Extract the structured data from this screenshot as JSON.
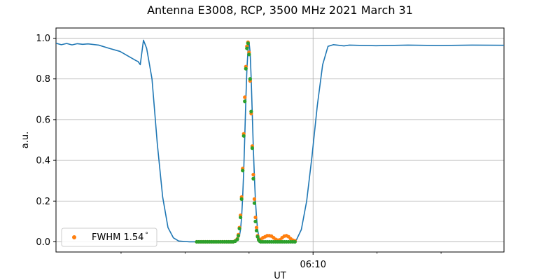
{
  "chart_data": {
    "type": "line",
    "title": "Antenna E3008, RCP, 3500 MHz 2021 March 31",
    "xlabel": "UT",
    "ylabel": "a.u.",
    "xlim": [
      "06:05:59",
      "06:12:59"
    ],
    "ylim": [
      -0.05,
      1.05
    ],
    "yticks": [
      0.0,
      0.2,
      0.4,
      0.6,
      0.8,
      1.0
    ],
    "ytick_labels": [
      "0.0",
      "0.2",
      "0.4",
      "0.6",
      "0.8",
      "1.0"
    ],
    "xtick_labels": [
      "06:10"
    ],
    "xticks_ut": [
      "06:10:00"
    ],
    "minor_xticks_ut": [
      "06:07:00",
      "06:08:00",
      "06:09:00",
      "06:11:00",
      "06:12:00"
    ],
    "grid": true,
    "legend_position": "lower left",
    "series": [
      {
        "name": "",
        "style": "line",
        "color": "#1f77b4",
        "x": [
          "06:05:59",
          "06:06:04",
          "06:06:09",
          "06:06:14",
          "06:06:19",
          "06:06:24",
          "06:06:29",
          "06:06:39",
          "06:06:49",
          "06:06:59",
          "06:07:09",
          "06:07:14",
          "06:07:16",
          "06:07:18",
          "06:07:21",
          "06:07:24",
          "06:07:29",
          "06:07:34",
          "06:07:39",
          "06:07:44",
          "06:07:49",
          "06:07:54",
          "06:07:59",
          "06:08:04",
          "06:08:14",
          "06:08:24",
          "06:08:34",
          "06:08:44",
          "06:08:49",
          "06:08:51",
          "06:08:52",
          "06:08:53",
          "06:08:54",
          "06:08:55",
          "06:08:56",
          "06:08:57",
          "06:08:58",
          "06:08:59",
          "06:09:00",
          "06:09:01",
          "06:09:02",
          "06:09:03",
          "06:09:04",
          "06:09:05",
          "06:09:06",
          "06:09:07",
          "06:09:08",
          "06:09:09",
          "06:09:10",
          "06:09:11",
          "06:09:12",
          "06:09:14",
          "06:09:19",
          "06:09:29",
          "06:09:39",
          "06:09:44",
          "06:09:49",
          "06:09:54",
          "06:09:59",
          "06:10:04",
          "06:10:09",
          "06:10:14",
          "06:10:19",
          "06:10:24",
          "06:10:29",
          "06:10:34",
          "06:10:59",
          "06:11:29",
          "06:11:59",
          "06:12:29",
          "06:12:59"
        ],
        "y": [
          0.975,
          0.968,
          0.974,
          0.967,
          0.973,
          0.97,
          0.972,
          0.966,
          0.95,
          0.935,
          0.905,
          0.89,
          0.885,
          0.87,
          0.99,
          0.95,
          0.8,
          0.48,
          0.22,
          0.07,
          0.02,
          0.004,
          0.002,
          0.0,
          0.0,
          0.0,
          0.0,
          0.0,
          0.01,
          0.03,
          0.06,
          0.12,
          0.22,
          0.35,
          0.52,
          0.7,
          0.85,
          0.94,
          0.98,
          0.93,
          0.8,
          0.63,
          0.46,
          0.32,
          0.2,
          0.12,
          0.06,
          0.03,
          0.012,
          0.004,
          0.0,
          0.0,
          0.0,
          0.0,
          0.0,
          0.005,
          0.06,
          0.2,
          0.42,
          0.67,
          0.87,
          0.96,
          0.968,
          0.965,
          0.962,
          0.966,
          0.963,
          0.966,
          0.964,
          0.966,
          0.965
        ]
      },
      {
        "name": "FWHM 1.54$^\\circ$",
        "legend_label": "FWHM 1.54",
        "legend_degree": "°",
        "style": "scatter",
        "color": "#ff7f0e",
        "x": [
          "06:08:11",
          "06:08:13",
          "06:08:15",
          "06:08:17",
          "06:08:19",
          "06:08:21",
          "06:08:23",
          "06:08:25",
          "06:08:27",
          "06:08:29",
          "06:08:31",
          "06:08:33",
          "06:08:35",
          "06:08:37",
          "06:08:39",
          "06:08:41",
          "06:08:43",
          "06:08:45",
          "06:08:47",
          "06:08:49",
          "06:08:50",
          "06:08:51",
          "06:08:52",
          "06:08:53",
          "06:08:54",
          "06:08:55",
          "06:08:56",
          "06:08:57",
          "06:08:58",
          "06:08:59",
          "06:09:00",
          "06:09:01",
          "06:09:02",
          "06:09:03",
          "06:09:04",
          "06:09:05",
          "06:09:06",
          "06:09:07",
          "06:09:08",
          "06:09:09",
          "06:09:10",
          "06:09:11",
          "06:09:13",
          "06:09:15",
          "06:09:17",
          "06:09:19",
          "06:09:21",
          "06:09:23",
          "06:09:25",
          "06:09:27",
          "06:09:29",
          "06:09:31",
          "06:09:33",
          "06:09:35",
          "06:09:37",
          "06:09:39",
          "06:09:41",
          "06:09:43"
        ],
        "y": [
          0.0,
          0.0,
          0.0,
          0.0,
          0.0,
          0.0,
          0.0,
          0.0,
          0.0,
          0.0,
          0.0,
          0.0,
          0.0,
          0.0,
          0.0,
          0.0,
          0.0,
          0.0,
          0.005,
          0.015,
          0.035,
          0.07,
          0.13,
          0.22,
          0.36,
          0.53,
          0.71,
          0.86,
          0.96,
          0.98,
          0.93,
          0.79,
          0.63,
          0.47,
          0.33,
          0.21,
          0.12,
          0.07,
          0.03,
          0.015,
          0.005,
          0.012,
          0.02,
          0.025,
          0.03,
          0.03,
          0.028,
          0.02,
          0.012,
          0.008,
          0.01,
          0.02,
          0.028,
          0.03,
          0.025,
          0.015,
          0.008,
          0.005
        ]
      },
      {
        "name": "",
        "style": "scatter",
        "color": "#2ca02c",
        "x": [
          "06:08:11",
          "06:08:13",
          "06:08:15",
          "06:08:17",
          "06:08:19",
          "06:08:21",
          "06:08:23",
          "06:08:25",
          "06:08:27",
          "06:08:29",
          "06:08:31",
          "06:08:33",
          "06:08:35",
          "06:08:37",
          "06:08:39",
          "06:08:41",
          "06:08:43",
          "06:08:45",
          "06:08:47",
          "06:08:49",
          "06:08:50",
          "06:08:51",
          "06:08:52",
          "06:08:53",
          "06:08:54",
          "06:08:55",
          "06:08:56",
          "06:08:57",
          "06:08:58",
          "06:08:59",
          "06:09:00",
          "06:09:01",
          "06:09:02",
          "06:09:03",
          "06:09:04",
          "06:09:05",
          "06:09:06",
          "06:09:07",
          "06:09:08",
          "06:09:09",
          "06:09:10",
          "06:09:11",
          "06:09:13",
          "06:09:15",
          "06:09:17",
          "06:09:19",
          "06:09:21",
          "06:09:23",
          "06:09:25",
          "06:09:27",
          "06:09:29",
          "06:09:31",
          "06:09:33",
          "06:09:35",
          "06:09:37",
          "06:09:39",
          "06:09:41",
          "06:09:43"
        ],
        "y": [
          0.0,
          0.0,
          0.0,
          0.0,
          0.0,
          0.0,
          0.0,
          0.0,
          0.0,
          0.0,
          0.0,
          0.0,
          0.0,
          0.0,
          0.0,
          0.0,
          0.0,
          0.0,
          0.003,
          0.012,
          0.03,
          0.065,
          0.12,
          0.21,
          0.35,
          0.52,
          0.69,
          0.85,
          0.95,
          0.975,
          0.92,
          0.8,
          0.64,
          0.46,
          0.31,
          0.19,
          0.1,
          0.055,
          0.025,
          0.01,
          0.003,
          0.0,
          0.0,
          0.0,
          0.0,
          0.0,
          0.0,
          0.0,
          0.0,
          0.0,
          0.0,
          0.0,
          0.0,
          0.0,
          0.0,
          0.0,
          0.0,
          0.0
        ]
      }
    ]
  }
}
